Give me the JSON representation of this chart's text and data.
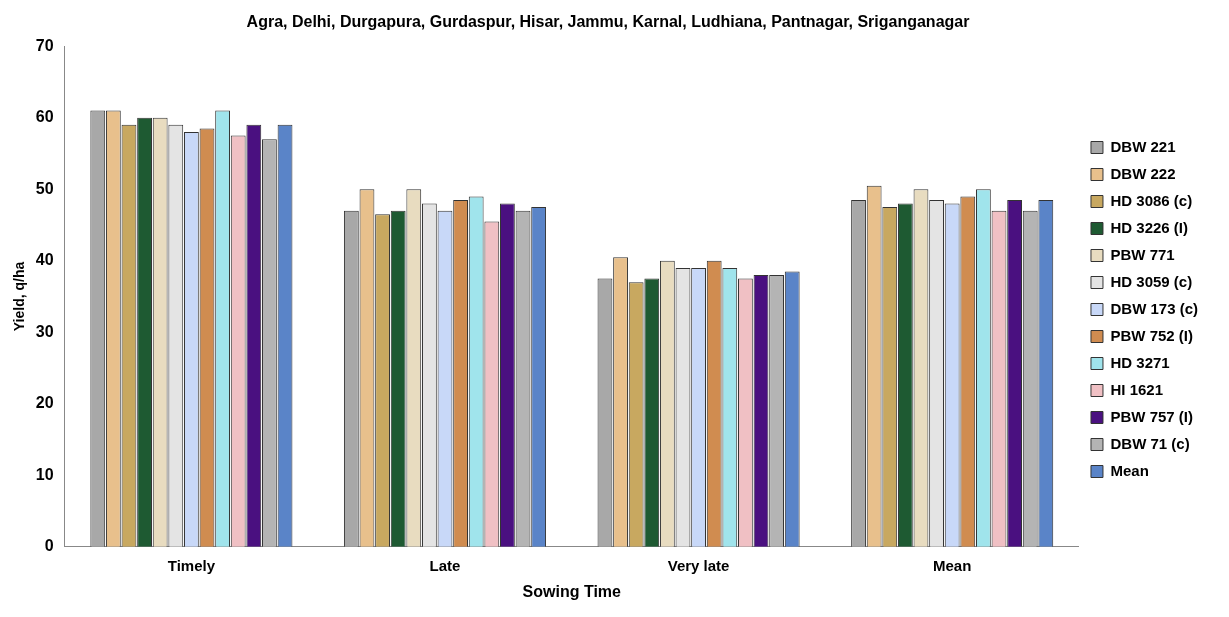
{
  "chart_data": {
    "type": "bar",
    "title": "Agra, Delhi, Durgapura, Gurdaspur, Hisar, Jammu, Karnal, Ludhiana, Pantnagar, Sriganganagar",
    "xlabel": "Sowing Time",
    "ylabel": "Yield, q/ha",
    "categories": [
      "Timely",
      "Late",
      "Very late",
      "Mean"
    ],
    "ylim": [
      0,
      70
    ],
    "yticks": [
      0,
      10,
      20,
      30,
      40,
      50,
      60,
      70
    ],
    "grid": false,
    "legend": "right",
    "series": [
      {
        "name": "DBW 221",
        "color": "#a8a8a8",
        "values": [
          61,
          47,
          37.5,
          48.5
        ]
      },
      {
        "name": "DBW 222",
        "color": "#e8c08c",
        "values": [
          61,
          50,
          40.5,
          50.5
        ]
      },
      {
        "name": "HD 3086 (c)",
        "color": "#c8a860",
        "values": [
          59,
          46.5,
          37,
          47.5
        ]
      },
      {
        "name": "HD 3226 (I)",
        "color": "#1e5a32",
        "values": [
          60,
          47,
          37.5,
          48
        ]
      },
      {
        "name": "PBW 771",
        "color": "#e8dcc0",
        "values": [
          60,
          50,
          40,
          50
        ]
      },
      {
        "name": "HD 3059 (c)",
        "color": "#e4e4e4",
        "values": [
          59,
          48,
          39,
          48.5
        ]
      },
      {
        "name": "DBW 173 (c)",
        "color": "#c8d8f8",
        "values": [
          58,
          47,
          39,
          48
        ]
      },
      {
        "name": "PBW 752 (I)",
        "color": "#d08c50",
        "values": [
          58.5,
          48.5,
          40,
          49
        ]
      },
      {
        "name": "HD 3271",
        "color": "#a0e4ec",
        "values": [
          61,
          49,
          39,
          50
        ]
      },
      {
        "name": "HI 1621",
        "color": "#f0c0c4",
        "values": [
          57.5,
          45.5,
          37.5,
          47
        ]
      },
      {
        "name": "PBW 757 (I)",
        "color": "#4a1080",
        "values": [
          59,
          48,
          38,
          48.5
        ]
      },
      {
        "name": "DBW 71 (c)",
        "color": "#b4b4b4",
        "values": [
          57,
          47,
          38,
          47
        ]
      },
      {
        "name": "Mean",
        "color": "#5a84c8",
        "values": [
          59,
          47.5,
          38.5,
          48.5
        ]
      }
    ]
  }
}
